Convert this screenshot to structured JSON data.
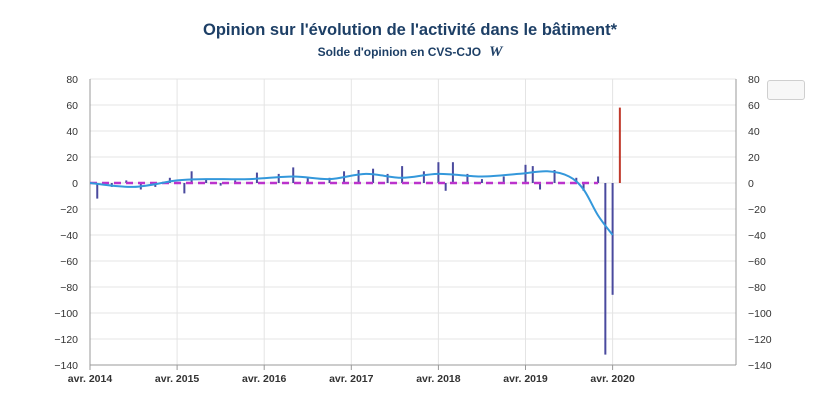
{
  "title": "Opinion sur l'évolution de l'activité dans le bâtiment*",
  "subtitle": "Solde d'opinion en CVS-CJO",
  "subtitle_logo": "W",
  "colors": {
    "title": "#1d3f66",
    "bars": "#4a4a9e",
    "last_bar": "#c0392b",
    "smooth_line": "#3498db",
    "zero_line": "#bb33cc",
    "grid": "#e4e4e4",
    "axis": "#999999"
  },
  "chart_data": {
    "type": "bar",
    "x_tick_labels": [
      "avr. 2014",
      "avr. 2015",
      "avr. 2016",
      "avr. 2017",
      "avr. 2018",
      "avr. 2019",
      "avr. 2020"
    ],
    "x_tick_dates": [
      "2014-04",
      "2015-04",
      "2016-04",
      "2017-04",
      "2018-04",
      "2019-04",
      "2020-04"
    ],
    "y_ticks": [
      80,
      60,
      40,
      20,
      0,
      -20,
      -40,
      -60,
      -80,
      -100,
      -120,
      -140
    ],
    "y_tick_labels_left": [
      "80",
      "60",
      "40",
      "20",
      "0",
      "−20",
      "−40",
      "−60",
      "−80",
      "−100",
      "−120",
      "−140"
    ],
    "y_tick_labels_right": [
      "80",
      "60",
      "40",
      "20",
      "0",
      "−20",
      "−40",
      "−60",
      "−80",
      "−100",
      "−120",
      "−140"
    ],
    "ylim": [
      -140,
      80
    ],
    "xlim": [
      "2014-04",
      "2021-09"
    ],
    "grid": true,
    "bars": [
      {
        "x": "2014-05",
        "y": -12
      },
      {
        "x": "2014-07",
        "y": -3
      },
      {
        "x": "2014-09",
        "y": 2
      },
      {
        "x": "2014-11",
        "y": -5
      },
      {
        "x": "2015-01",
        "y": -3
      },
      {
        "x": "2015-03",
        "y": 4
      },
      {
        "x": "2015-05",
        "y": -8
      },
      {
        "x": "2015-06",
        "y": 9
      },
      {
        "x": "2015-08",
        "y": 3
      },
      {
        "x": "2015-10",
        "y": -2
      },
      {
        "x": "2015-12",
        "y": 2
      },
      {
        "x": "2016-03",
        "y": 8
      },
      {
        "x": "2016-06",
        "y": 7
      },
      {
        "x": "2016-08",
        "y": 12
      },
      {
        "x": "2016-10",
        "y": 4
      },
      {
        "x": "2017-01",
        "y": 4
      },
      {
        "x": "2017-03",
        "y": 9
      },
      {
        "x": "2017-05",
        "y": 10
      },
      {
        "x": "2017-07",
        "y": 11
      },
      {
        "x": "2017-09",
        "y": 7
      },
      {
        "x": "2017-11",
        "y": 13
      },
      {
        "x": "2018-02",
        "y": 9
      },
      {
        "x": "2018-04",
        "y": 16
      },
      {
        "x": "2018-05",
        "y": -6
      },
      {
        "x": "2018-06",
        "y": 16
      },
      {
        "x": "2018-08",
        "y": 7
      },
      {
        "x": "2018-10",
        "y": 3
      },
      {
        "x": "2019-01",
        "y": 5
      },
      {
        "x": "2019-04",
        "y": 14
      },
      {
        "x": "2019-05",
        "y": 13
      },
      {
        "x": "2019-06",
        "y": -5
      },
      {
        "x": "2019-08",
        "y": 10
      },
      {
        "x": "2019-11",
        "y": 4
      },
      {
        "x": "2019-12",
        "y": -6
      },
      {
        "x": "2020-02",
        "y": 5
      },
      {
        "x": "2020-03",
        "y": -132
      },
      {
        "x": "2020-04",
        "y": -86
      }
    ],
    "last_bar": {
      "x": "2020-05",
      "y": 58
    },
    "smooth_line": [
      {
        "x": "2014-04",
        "y": 0
      },
      {
        "x": "2014-10",
        "y": -3
      },
      {
        "x": "2015-04",
        "y": 2
      },
      {
        "x": "2015-08",
        "y": 3
      },
      {
        "x": "2016-02",
        "y": 3
      },
      {
        "x": "2016-08",
        "y": 5
      },
      {
        "x": "2017-01",
        "y": 3
      },
      {
        "x": "2017-06",
        "y": 7
      },
      {
        "x": "2017-11",
        "y": 4
      },
      {
        "x": "2018-04",
        "y": 7
      },
      {
        "x": "2018-10",
        "y": 5
      },
      {
        "x": "2019-03",
        "y": 7
      },
      {
        "x": "2019-07",
        "y": 9
      },
      {
        "x": "2019-10",
        "y": 5
      },
      {
        "x": "2019-12",
        "y": -5
      },
      {
        "x": "2020-02",
        "y": -25
      },
      {
        "x": "2020-04",
        "y": -40
      }
    ],
    "reference_line": {
      "y": 0,
      "from": "2014-04",
      "to": "2020-02",
      "style": "dashed"
    }
  }
}
